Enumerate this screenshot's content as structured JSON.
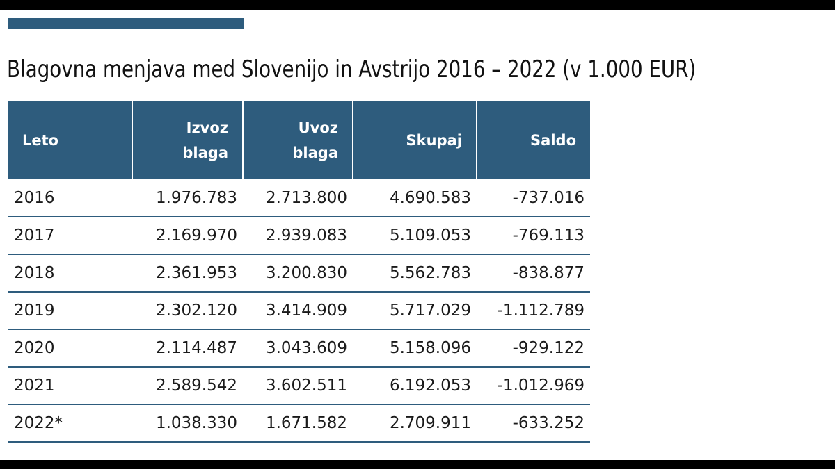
{
  "title": "Blagovna menjava med Slovenijo in Avstrijo 2016 – 2022 (v 1.000 EUR)",
  "colors": {
    "accent": "#2e5c7d",
    "header_text": "#ffffff",
    "background": "#ffffff",
    "letterbox": "#000000"
  },
  "table": {
    "headers": [
      "Leto",
      "Izvoz blaga",
      "Uvoz blaga",
      "Skupaj",
      "Saldo"
    ],
    "rows": [
      [
        "2016",
        "1.976.783",
        "2.713.800",
        "4.690.583",
        "-737.016"
      ],
      [
        "2017",
        "2.169.970",
        "2.939.083",
        "5.109.053",
        "-769.113"
      ],
      [
        "2018",
        "2.361.953",
        "3.200.830",
        "5.562.783",
        "-838.877"
      ],
      [
        "2019",
        "2.302.120",
        "3.414.909",
        "5.717.029",
        "-1.112.789"
      ],
      [
        "2020",
        "2.114.487",
        "3.043.609",
        "5.158.096",
        "-929.122"
      ],
      [
        "2021",
        "2.589.542",
        "3.602.511",
        "6.192.053",
        "-1.012.969"
      ],
      [
        "2022*",
        "1.038.330",
        "1.671.582",
        "2.709.911",
        "-633.252"
      ]
    ]
  }
}
